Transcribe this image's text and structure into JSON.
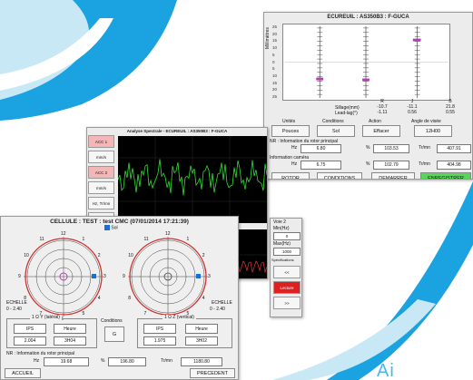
{
  "colors": {
    "accent_blue": "#1aa3e0",
    "green_button": "#57d657",
    "red_button": "#e02020",
    "dial_red": "#d03030"
  },
  "window_top": {
    "title": "ECUREUIL : AS350B3 : F-GUCA",
    "y_axis_label": "Millimètres",
    "y_ticks": [
      "25",
      "20",
      "15",
      "10",
      "5",
      "0",
      "5",
      "10",
      "15",
      "20",
      "25"
    ],
    "row_labels": {
      "sillage": "Sillage(mm)",
      "leadlag": "Lead-lag(°)"
    },
    "columns": [
      {
        "name": "R",
        "sillage": "-10.7",
        "leadlag": "-1.11"
      },
      {
        "name": "J",
        "sillage": "-11.1",
        "leadlag": "0.56"
      },
      {
        "name": "B",
        "sillage": "21.8",
        "leadlag": "0.55"
      }
    ],
    "groups": {
      "unites": "Unités",
      "conditions": "Conditions",
      "action": "Action",
      "angle": "Angle de visée"
    },
    "buttons": {
      "pouces": "Pouces",
      "sol": "Sol",
      "effacer": "Effacer",
      "angle_value": "12H00"
    },
    "nr_label": "NR : Information du rotor principal",
    "nr_hz_label": "Hz",
    "nr_hz": "6.80",
    "nr_pct_label": "%",
    "nr_pct": "103.53",
    "nr_trmn_label": "Tr/mn",
    "nr_trmn": "407.91",
    "cam_label": "Information caméra",
    "cam_hz_label": "Hz",
    "cam_hz": "6.75",
    "cam_pct_label": "%",
    "cam_pct": "102.79",
    "cam_trmn_label": "Tr/mn",
    "cam_trmn": "404.98",
    "bottom_buttons": {
      "rotor": "ROTOR",
      "conditions": "CONDITIONS",
      "demarrer": "DEMARRER",
      "enregistrer": "ENREGISTRER"
    }
  },
  "window_spectral": {
    "title": "Analyse Spectrale - ECUREUIL : AS350B3 : F-GUCA",
    "side_buttons": [
      "ACC 1",
      "mm/s",
      "ACC 2",
      "mm/s",
      "Hz, Tr/mn",
      "ZOOM"
    ]
  },
  "window_side": {
    "voie_label": "Voie 2",
    "min_label": "Min(Hz)",
    "min_value": "0",
    "max_label": "Max(Hz)",
    "max_value": "1000",
    "spec_label": "Spécifications",
    "btn_prev": "<<",
    "btn_stop": "Lecture",
    "btn_next": ">>"
  },
  "window_cellule": {
    "title": "CELLULE : TEST : test CMC (07/01/2014 17:21:39)",
    "sol_label": "Sol",
    "dial_labels": [
      "12",
      "1",
      "2",
      "3",
      "4",
      "5",
      "6",
      "7",
      "8",
      "9",
      "10",
      "11"
    ],
    "echelle_label": "ECHELLE",
    "echelle_value": "0 - 2.40",
    "lateral_label": "1 Ω Y (latéral)",
    "vertical_label": "1 Ω Z (vertical)",
    "conditions_label": "Conditions",
    "conditions_value": "G",
    "ips_label": "IPS",
    "heure_label": "Heure",
    "lat_ips": "2.004",
    "lat_heure": "3H04",
    "vert_ips": "1.975",
    "vert_heure": "3H02",
    "nr_label": "NR : Information du rotor principal",
    "hz_label": "Hz",
    "hz": "19.68",
    "pct_label": "%",
    "pct": "196.80",
    "trmn_label": "Tr/mn",
    "trmn": "1180.80",
    "accueil": "ACCUEIL",
    "precedent": "PRECEDENT"
  },
  "footer_text": "Ai"
}
